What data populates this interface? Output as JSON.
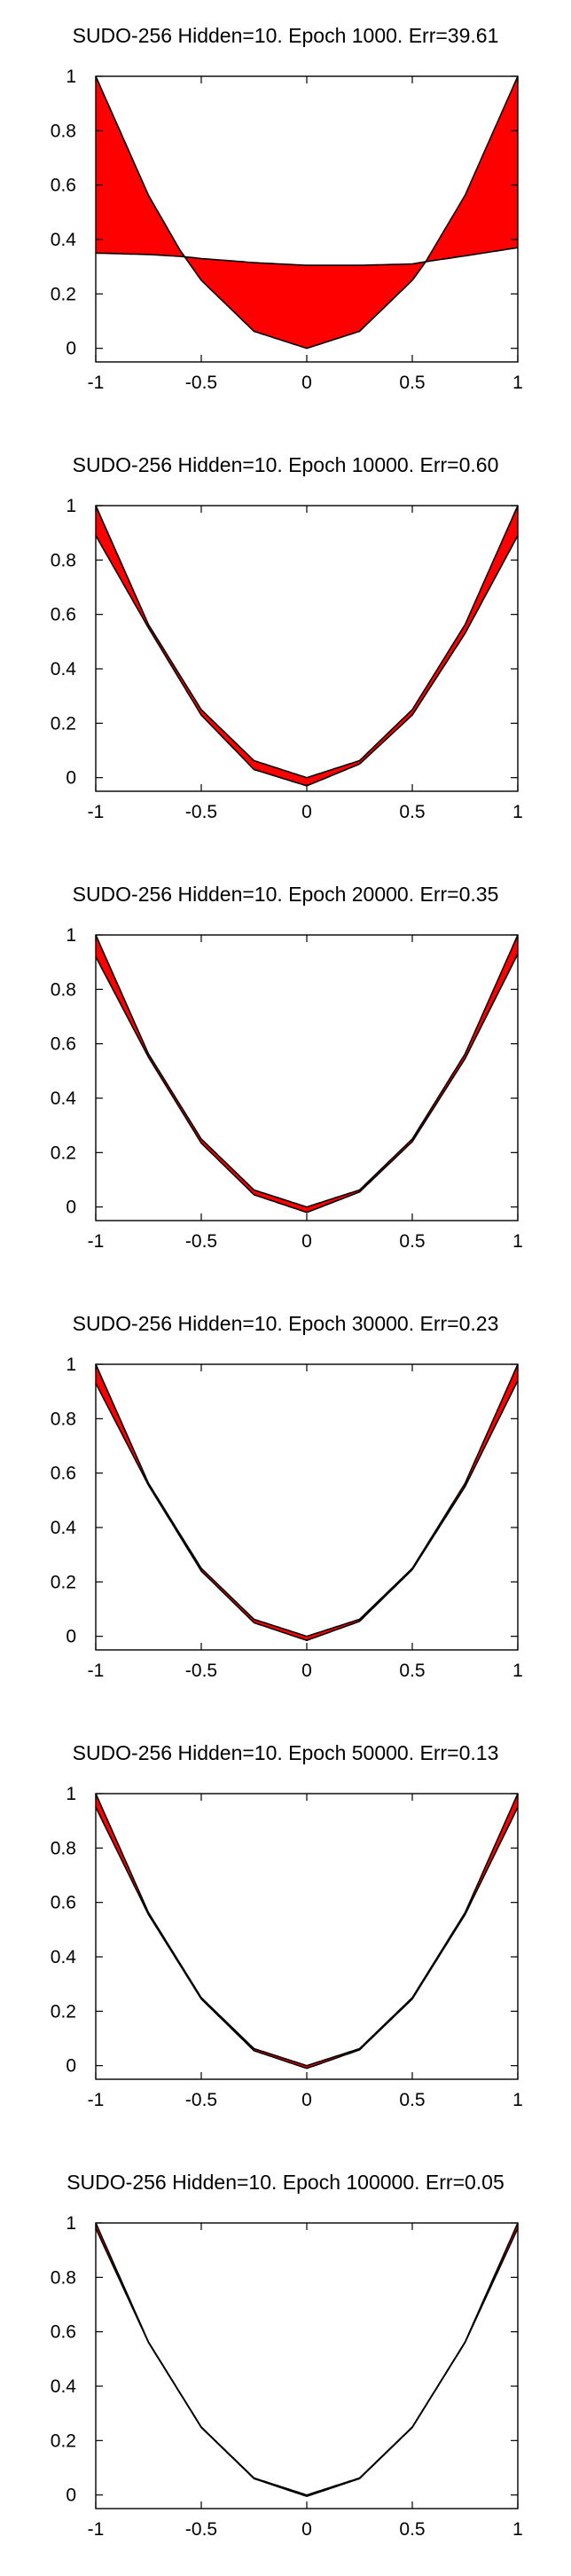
{
  "chart_data": [
    {
      "type": "area",
      "title": "SUDO-256 Hidden=10. Epoch 1000. Err=39.61",
      "xlim": [
        -1,
        1
      ],
      "ylim": [
        -0.05,
        1.0
      ],
      "xticks": [
        "-1",
        "-0.5",
        "0",
        "0.5",
        "1"
      ],
      "yticks": [
        "0",
        "0.2",
        "0.4",
        "0.6",
        "0.8",
        "1"
      ],
      "series": [
        {
          "x": [
            -1,
            -0.75,
            -0.6,
            -0.5,
            -0.25,
            0,
            0.25,
            0.5,
            0.56,
            0.75,
            1
          ],
          "values": [
            1,
            0.5625,
            0.36,
            0.25,
            0.0625,
            0,
            0.0625,
            0.25,
            0.3136,
            0.5625,
            1
          ]
        },
        {
          "x": [
            -1,
            -0.75,
            -0.6,
            -0.5,
            -0.25,
            0,
            0.25,
            0.5,
            0.56,
            0.75,
            1
          ],
          "values": [
            0.35,
            0.345,
            0.338,
            0.33,
            0.315,
            0.305,
            0.305,
            0.31,
            0.318,
            0.34,
            0.37
          ]
        }
      ],
      "fill": "#ff0000"
    },
    {
      "type": "area",
      "title": "SUDO-256 Hidden=10. Epoch 10000. Err=0.60",
      "xlim": [
        -1,
        1
      ],
      "ylim": [
        -0.05,
        1.0
      ],
      "xticks": [
        "-1",
        "-0.5",
        "0",
        "0.5",
        "1"
      ],
      "yticks": [
        "0",
        "0.2",
        "0.4",
        "0.6",
        "0.8",
        "1"
      ],
      "series": [
        {
          "x": [
            -1,
            -0.75,
            -0.5,
            -0.25,
            0,
            0.25,
            0.5,
            0.75,
            1
          ],
          "values": [
            1,
            0.5625,
            0.25,
            0.0625,
            0,
            0.0625,
            0.25,
            0.5625,
            1
          ]
        },
        {
          "x": [
            -1,
            -0.75,
            -0.5,
            -0.25,
            0,
            0.25,
            0.5,
            0.75,
            1
          ],
          "values": [
            0.89,
            0.55,
            0.23,
            0.03,
            -0.03,
            0.05,
            0.23,
            0.53,
            0.89
          ]
        }
      ],
      "fill": "#ff0000"
    },
    {
      "type": "area",
      "title": "SUDO-256 Hidden=10. Epoch 20000. Err=0.35",
      "xlim": [
        -1,
        1
      ],
      "ylim": [
        -0.05,
        1.0
      ],
      "xticks": [
        "-1",
        "-0.5",
        "0",
        "0.5",
        "1"
      ],
      "yticks": [
        "0",
        "0.2",
        "0.4",
        "0.6",
        "0.8",
        "1"
      ],
      "series": [
        {
          "x": [
            -1,
            -0.75,
            -0.5,
            -0.25,
            0,
            0.25,
            0.5,
            0.75,
            1
          ],
          "values": [
            1,
            0.5625,
            0.25,
            0.0625,
            0,
            0.0625,
            0.25,
            0.5625,
            1
          ]
        },
        {
          "x": [
            -1,
            -0.75,
            -0.5,
            -0.25,
            0,
            0.25,
            0.5,
            0.75,
            1
          ],
          "values": [
            0.92,
            0.55,
            0.235,
            0.045,
            -0.02,
            0.055,
            0.24,
            0.545,
            0.93
          ]
        }
      ],
      "fill": "#ff0000"
    },
    {
      "type": "area",
      "title": "SUDO-256 Hidden=10. Epoch 30000. Err=0.23",
      "xlim": [
        -1,
        1
      ],
      "ylim": [
        -0.05,
        1.0
      ],
      "xticks": [
        "-1",
        "-0.5",
        "0",
        "0.5",
        "1"
      ],
      "yticks": [
        "0",
        "0.2",
        "0.4",
        "0.6",
        "0.8",
        "1"
      ],
      "series": [
        {
          "x": [
            -1,
            -0.75,
            -0.5,
            -0.25,
            0,
            0.25,
            0.5,
            0.75,
            1
          ],
          "values": [
            1,
            0.5625,
            0.25,
            0.0625,
            0,
            0.0625,
            0.25,
            0.5625,
            1
          ]
        },
        {
          "x": [
            -1,
            -0.75,
            -0.5,
            -0.25,
            0,
            0.25,
            0.5,
            0.75,
            1
          ],
          "values": [
            0.93,
            0.555,
            0.24,
            0.05,
            -0.015,
            0.055,
            0.245,
            0.55,
            0.94
          ]
        }
      ],
      "fill": "#ff0000"
    },
    {
      "type": "area",
      "title": "SUDO-256 Hidden=10. Epoch 50000. Err=0.13",
      "xlim": [
        -1,
        1
      ],
      "ylim": [
        -0.05,
        1.0
      ],
      "xticks": [
        "-1",
        "-0.5",
        "0",
        "0.5",
        "1"
      ],
      "yticks": [
        "0",
        "0.2",
        "0.4",
        "0.6",
        "0.8",
        "1"
      ],
      "series": [
        {
          "x": [
            -1,
            -0.75,
            -0.5,
            -0.25,
            0,
            0.25,
            0.5,
            0.75,
            1
          ],
          "values": [
            1,
            0.5625,
            0.25,
            0.0625,
            0,
            0.0625,
            0.25,
            0.5625,
            1
          ]
        },
        {
          "x": [
            -1,
            -0.75,
            -0.5,
            -0.25,
            0,
            0.25,
            0.5,
            0.75,
            1
          ],
          "values": [
            0.95,
            0.555,
            0.245,
            0.055,
            -0.01,
            0.058,
            0.245,
            0.555,
            0.95
          ]
        }
      ],
      "fill": "#ff0000"
    },
    {
      "type": "area",
      "title": "SUDO-256 Hidden=10. Epoch 100000. Err=0.05",
      "xlim": [
        -1,
        1
      ],
      "ylim": [
        -0.05,
        1.0
      ],
      "xticks": [
        "-1",
        "-0.5",
        "0",
        "0.5",
        "1"
      ],
      "yticks": [
        "0",
        "0.2",
        "0.4",
        "0.6",
        "0.8",
        "1"
      ],
      "series": [
        {
          "x": [
            -1,
            -0.75,
            -0.5,
            -0.25,
            0,
            0.25,
            0.5,
            0.75,
            1
          ],
          "values": [
            1,
            0.5625,
            0.25,
            0.0625,
            0,
            0.0625,
            0.25,
            0.5625,
            1
          ]
        },
        {
          "x": [
            -1,
            -0.75,
            -0.5,
            -0.25,
            0,
            0.25,
            0.5,
            0.75,
            1
          ],
          "values": [
            0.98,
            0.56,
            0.248,
            0.06,
            -0.005,
            0.06,
            0.248,
            0.56,
            0.98
          ]
        }
      ],
      "fill": "#ff0000"
    }
  ]
}
